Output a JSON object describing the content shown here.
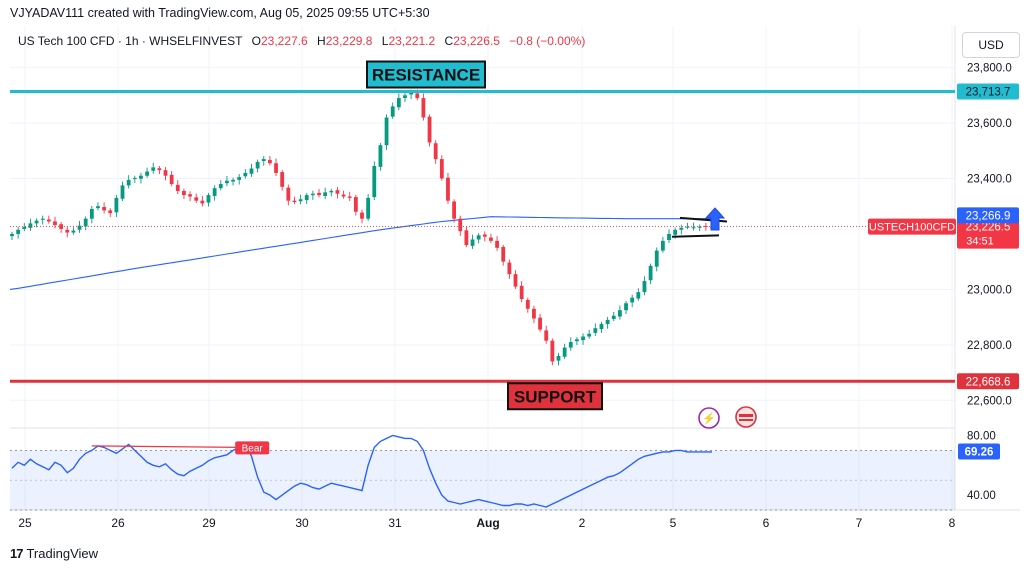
{
  "header": {
    "creator_line": "VJYADAV111 created with TradingView.com, Aug 05, 2025 09:55 UTC+5:30",
    "symbol": "US Tech 100 CFD · 1h · WHSELFINVEST",
    "ohlc": [
      {
        "key": "O",
        "value": "23,227.6"
      },
      {
        "key": "H",
        "value": "23,229.8"
      },
      {
        "key": "L",
        "value": "23,221.2"
      },
      {
        "key": "C",
        "value": "23,226.5"
      }
    ],
    "change": "−0.8 (−0.00%)",
    "currency": "USD"
  },
  "footer": {
    "brand": "TradingView",
    "logo_icon": "tradingview-logo-icon"
  },
  "colors": {
    "up": "#089981",
    "down": "#f23645",
    "resistance": "#22bcd0",
    "support": "#e0323c",
    "ma": "#2962ff",
    "rsi": "#2962ff",
    "arrow": "#2962ff"
  },
  "chart_data": {
    "type": "candlestick",
    "price_axis": {
      "range": [
        22500,
        23950
      ],
      "ticks": [
        "23,800.0",
        "23,600.0",
        "23,400.0",
        "23,000.0",
        "22,800.0",
        "22,600.0"
      ],
      "tick_values": [
        23800,
        23600,
        23400,
        23000,
        22800,
        22600
      ]
    },
    "time_axis": {
      "labels": [
        "25",
        "26",
        "29",
        "30",
        "31",
        "Aug",
        "2",
        "5",
        "6",
        "7",
        "8"
      ]
    },
    "annotations": {
      "resistance": {
        "label": "RESISTANCE",
        "price": 23713.7,
        "price_label": "23,713.7"
      },
      "support": {
        "label": "SUPPORT",
        "price": 22668.6,
        "price_label": "22,668.6"
      },
      "moving_average_label": "23,266.9",
      "moving_average_value": 23266.9,
      "last_price_symbol": "USTECH100CFD",
      "last_price_label": "23,226.5",
      "last_price_value": 23226.5,
      "countdown": "34:51",
      "rsi_label": "Bear",
      "breakout_arrow": "up"
    },
    "candles_close": [
      23200,
      23215,
      23225,
      23238,
      23248,
      23255,
      23245,
      23232,
      23218,
      23205,
      23212,
      23230,
      23255,
      23290,
      23300,
      23285,
      23275,
      23330,
      23375,
      23395,
      23402,
      23410,
      23425,
      23440,
      23430,
      23410,
      23380,
      23355,
      23340,
      23335,
      23320,
      23310,
      23340,
      23365,
      23380,
      23392,
      23395,
      23405,
      23420,
      23436,
      23460,
      23470,
      23455,
      23420,
      23370,
      23320,
      23315,
      23325,
      23340,
      23345,
      23340,
      23350,
      23355,
      23345,
      23335,
      23330,
      23280,
      23255,
      23330,
      23445,
      23520,
      23620,
      23660,
      23690,
      23700,
      23710,
      23690,
      23620,
      23530,
      23470,
      23400,
      23320,
      23255,
      23210,
      23160,
      23180,
      23195,
      23190,
      23175,
      23150,
      23100,
      23055,
      23010,
      22965,
      22930,
      22895,
      22855,
      22815,
      22740,
      22760,
      22790,
      22810,
      22820,
      22830,
      22840,
      22860,
      22875,
      22890,
      22905,
      22925,
      22950,
      22970,
      22990,
      23030,
      23085,
      23140,
      23175,
      23200,
      23215,
      23222,
      23226,
      23224,
      23226,
      23228,
      23226
    ],
    "ma": {
      "name": "",
      "x_start": 0,
      "x_end": 114,
      "points": [
        [
          0,
          23000
        ],
        [
          20,
          23075
        ],
        [
          40,
          23145
        ],
        [
          60,
          23215
        ],
        [
          70,
          23245
        ],
        [
          78,
          23262
        ],
        [
          90,
          23258
        ],
        [
          100,
          23255
        ],
        [
          114,
          23255
        ]
      ]
    },
    "rsi": {
      "range": [
        30,
        85
      ],
      "ticks": [
        "80.00",
        "40.00"
      ],
      "tick_values": [
        80,
        40
      ],
      "band": [
        70,
        30
      ],
      "current_label": "69.26",
      "current_value": 69.26,
      "values": [
        58,
        62,
        60,
        64,
        61,
        59,
        57,
        62,
        60,
        55,
        58,
        64,
        68,
        70,
        73,
        72,
        70,
        68,
        71,
        74,
        70,
        66,
        62,
        60,
        59,
        61,
        57,
        54,
        53,
        56,
        58,
        60,
        63,
        65,
        66,
        67,
        70,
        72,
        74,
        66,
        52,
        42,
        40,
        37,
        40,
        43,
        46,
        48,
        47,
        45,
        44,
        46,
        48,
        47,
        46,
        45,
        44,
        43,
        60,
        72,
        76,
        78,
        80,
        79,
        78,
        78,
        76,
        70,
        58,
        48,
        40,
        36,
        35,
        34,
        35,
        36,
        37,
        36,
        35,
        34,
        33,
        33,
        34,
        34,
        33,
        34,
        33,
        32,
        34,
        36,
        38,
        40,
        42,
        44,
        46,
        48,
        50,
        52,
        53,
        55,
        58,
        61,
        64,
        66,
        67,
        68,
        69,
        69,
        70,
        70,
        69,
        69,
        69,
        69,
        69
      ]
    }
  }
}
